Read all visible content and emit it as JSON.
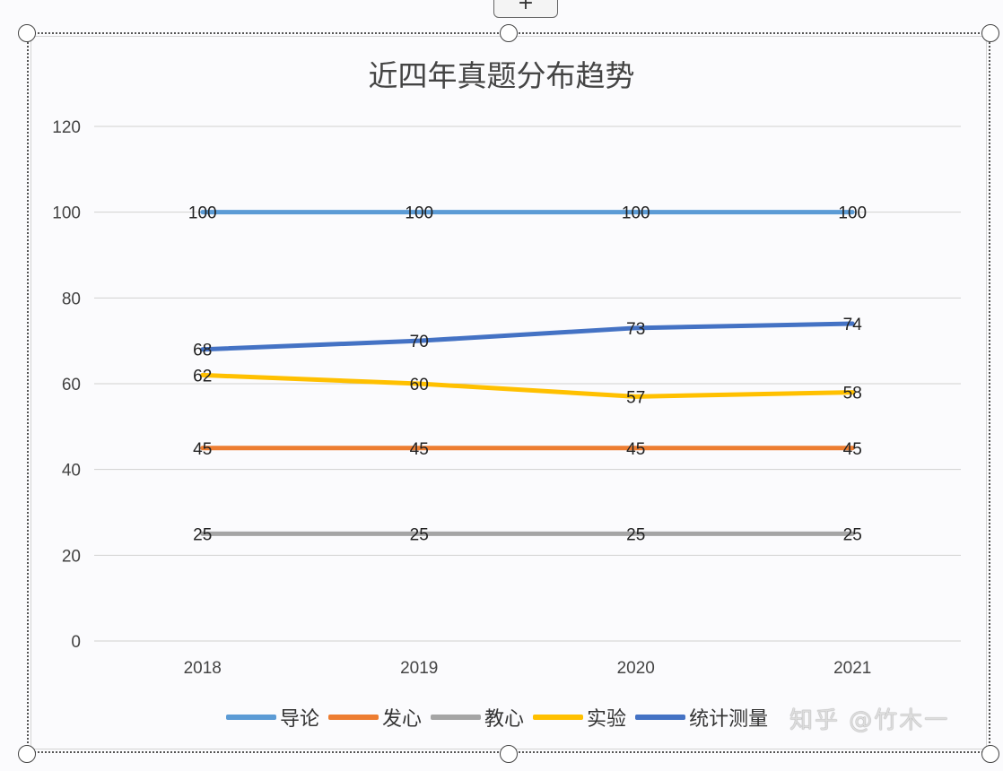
{
  "toolbar": {
    "add_element_label": "+"
  },
  "chart_data": {
    "type": "line",
    "title": "近四年真题分布趋势",
    "xlabel": "",
    "ylabel": "",
    "categories": [
      "2018",
      "2019",
      "2020",
      "2021"
    ],
    "ylim": [
      0,
      120
    ],
    "yticks": [
      0,
      20,
      40,
      60,
      80,
      100,
      120
    ],
    "grid": true,
    "legend_position": "bottom",
    "data_labels": true,
    "series": [
      {
        "name": "导论",
        "color": "#5b9bd5",
        "values": [
          100,
          100,
          100,
          100
        ]
      },
      {
        "name": "发心",
        "color": "#ed7d31",
        "values": [
          45,
          45,
          45,
          45
        ]
      },
      {
        "name": "教心",
        "color": "#a5a5a5",
        "values": [
          25,
          25,
          25,
          25
        ]
      },
      {
        "name": "实验",
        "color": "#ffc000",
        "values": [
          62,
          60,
          57,
          58
        ]
      },
      {
        "name": "统计测量",
        "color": "#4472c4",
        "values": [
          68,
          70,
          73,
          74
        ]
      }
    ]
  },
  "watermark": "知乎 @竹木一"
}
